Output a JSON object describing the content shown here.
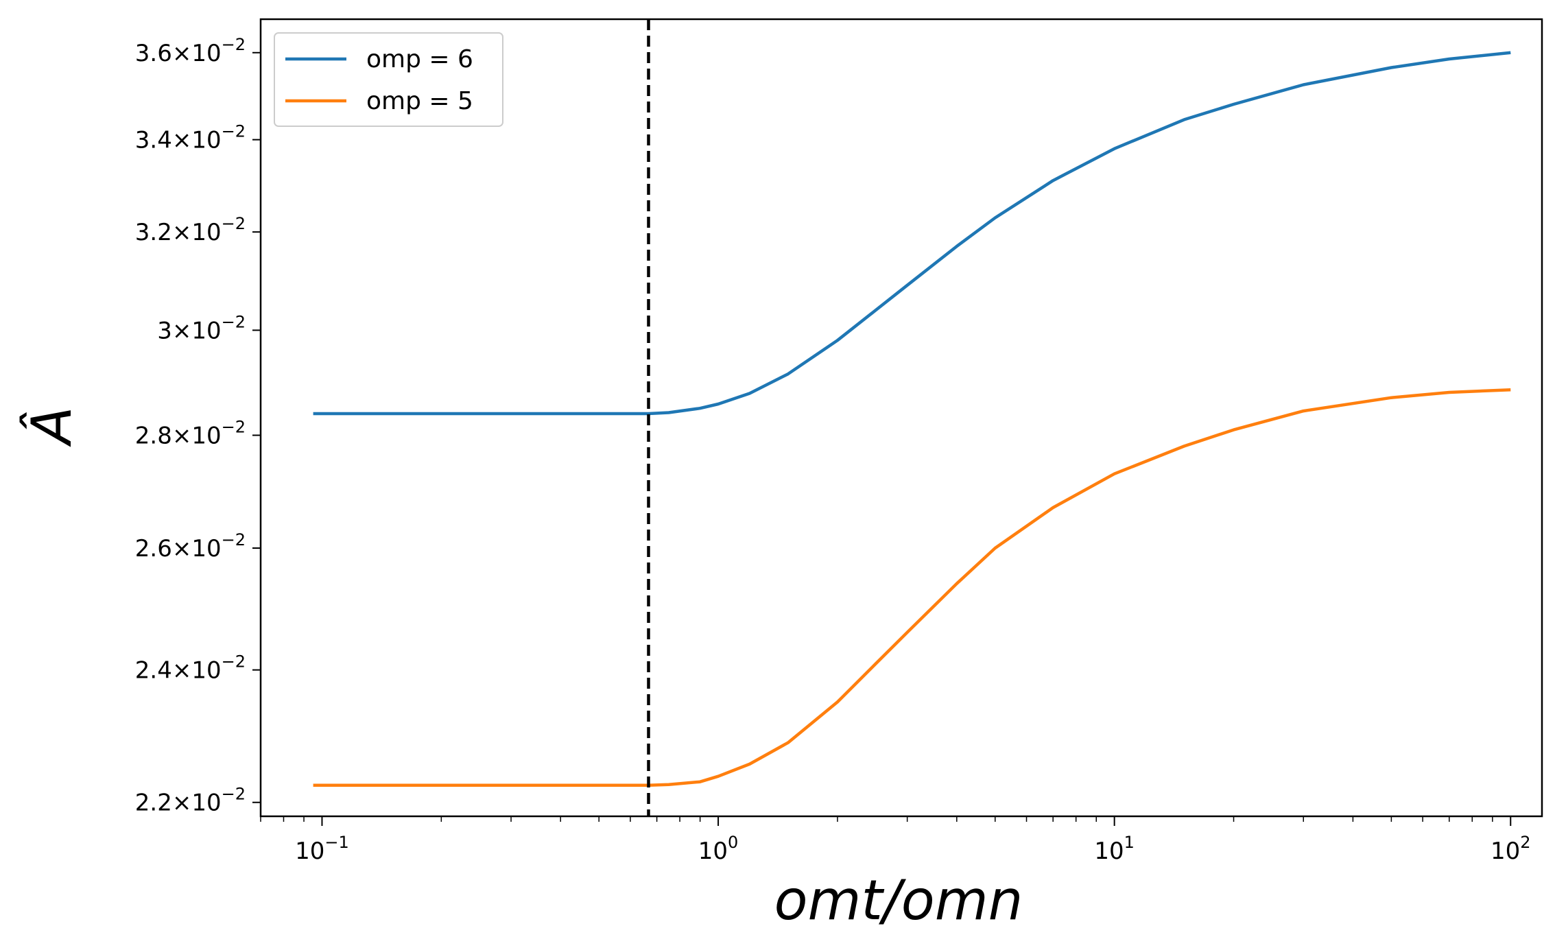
{
  "chart_data": {
    "type": "line",
    "xlabel": "omt/omn",
    "ylabel": "Â",
    "xscale": "log",
    "yscale": "log",
    "xlim": [
      0.07,
      120
    ],
    "ylim": [
      0.0218,
      0.0368
    ],
    "grid": false,
    "legend_position": "top-left",
    "x_ticks": [
      {
        "value": 0.1,
        "base": "10",
        "exp": "−1"
      },
      {
        "value": 1,
        "base": "10",
        "exp": "0"
      },
      {
        "value": 10,
        "base": "10",
        "exp": "1"
      },
      {
        "value": 100,
        "base": "10",
        "exp": "2"
      }
    ],
    "y_ticks": [
      {
        "value": 0.022,
        "mant": "2.2",
        "exp": "−2"
      },
      {
        "value": 0.024,
        "mant": "2.4",
        "exp": "−2"
      },
      {
        "value": 0.026,
        "mant": "2.6",
        "exp": "−2"
      },
      {
        "value": 0.028,
        "mant": "2.8",
        "exp": "−2"
      },
      {
        "value": 0.03,
        "mant": "3",
        "exp": "−2"
      },
      {
        "value": 0.032,
        "mant": "3.2",
        "exp": "−2"
      },
      {
        "value": 0.034,
        "mant": "3.4",
        "exp": "−2"
      },
      {
        "value": 0.036,
        "mant": "3.6",
        "exp": "−2"
      }
    ],
    "vertical_line": {
      "x": 0.667,
      "style": "dashed",
      "color": "#000000"
    },
    "series": [
      {
        "name": "omp = 6",
        "color": "#1f77b4",
        "points": [
          [
            0.095,
            0.0284
          ],
          [
            0.2,
            0.0284
          ],
          [
            0.4,
            0.0284
          ],
          [
            0.667,
            0.0284
          ],
          [
            0.75,
            0.02842
          ],
          [
            0.9,
            0.0285
          ],
          [
            1.0,
            0.02858
          ],
          [
            1.2,
            0.02878
          ],
          [
            1.5,
            0.02915
          ],
          [
            2.0,
            0.0298
          ],
          [
            2.5,
            0.0304
          ],
          [
            3.0,
            0.0309
          ],
          [
            4.0,
            0.0317
          ],
          [
            5.0,
            0.0323
          ],
          [
            7.0,
            0.0331
          ],
          [
            10.0,
            0.0338
          ],
          [
            15.0,
            0.03445
          ],
          [
            20.0,
            0.0348
          ],
          [
            30.0,
            0.03525
          ],
          [
            50.0,
            0.03565
          ],
          [
            70.0,
            0.03585
          ],
          [
            100.0,
            0.036
          ]
        ]
      },
      {
        "name": "omp = 5",
        "color": "#ff7f0e",
        "points": [
          [
            0.095,
            0.02225
          ],
          [
            0.2,
            0.02225
          ],
          [
            0.4,
            0.02225
          ],
          [
            0.667,
            0.02225
          ],
          [
            0.75,
            0.02226
          ],
          [
            0.9,
            0.0223
          ],
          [
            1.0,
            0.02238
          ],
          [
            1.2,
            0.02256
          ],
          [
            1.5,
            0.02288
          ],
          [
            2.0,
            0.0235
          ],
          [
            2.5,
            0.0241
          ],
          [
            3.0,
            0.0246
          ],
          [
            4.0,
            0.0254
          ],
          [
            5.0,
            0.026
          ],
          [
            7.0,
            0.0267
          ],
          [
            10.0,
            0.0273
          ],
          [
            15.0,
            0.0278
          ],
          [
            20.0,
            0.0281
          ],
          [
            30.0,
            0.02845
          ],
          [
            50.0,
            0.0287
          ],
          [
            70.0,
            0.0288
          ],
          [
            100.0,
            0.02885
          ]
        ]
      }
    ]
  }
}
